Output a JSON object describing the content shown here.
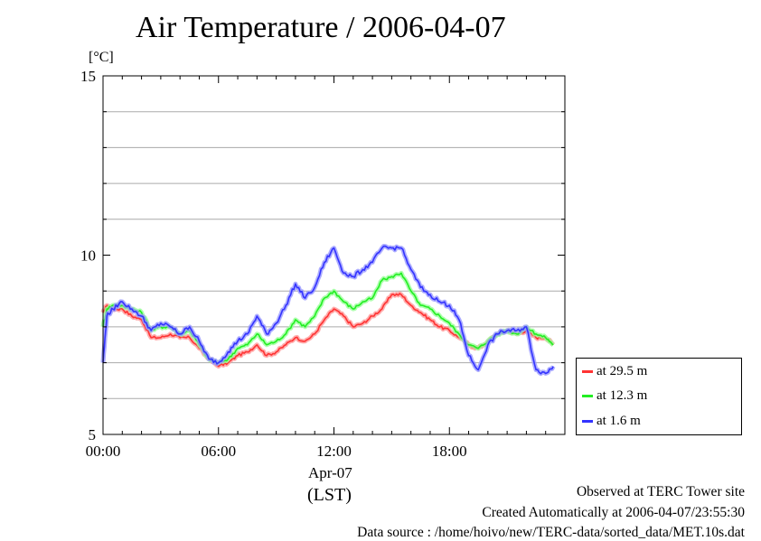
{
  "title": "Air Temperature / 2006-04-07",
  "y_unit": "[°C]",
  "date_label": "Apr-07",
  "timezone_label": "(LST)",
  "footer": {
    "site": "Observed at TERC Tower site",
    "created": "Created Automatically at 2006-04-07/23:55:30",
    "source": "Data source : /home/hoivo/new/TERC-data/sorted_data/MET.10s.dat"
  },
  "legend": [
    {
      "label": "at 29.5 m",
      "color": "#ff3333"
    },
    {
      "label": "at 12.3 m",
      "color": "#22ee22"
    },
    {
      "label": "at 1.6 m",
      "color": "#3333ff"
    }
  ],
  "chart_data": {
    "type": "line",
    "title": "Air Temperature / 2006-04-07",
    "ylabel": "[°C]",
    "xlabel": "(LST)",
    "xlim": [
      0,
      24
    ],
    "ylim": [
      5,
      15
    ],
    "x_ticks": [
      {
        "value": 0,
        "label": "00:00"
      },
      {
        "value": 6,
        "label": "06:00"
      },
      {
        "value": 12,
        "label": "12:00"
      },
      {
        "value": 18,
        "label": "18:00"
      }
    ],
    "y_ticks": [
      {
        "value": 5,
        "label": "5"
      },
      {
        "value": 10,
        "label": "10"
      },
      {
        "value": 15,
        "label": "15"
      }
    ],
    "grid_y": [
      6,
      7,
      8,
      9,
      11,
      12,
      13,
      14
    ],
    "legend_position": "right",
    "series": [
      {
        "name": "at 29.5 m",
        "color": "#ff3333",
        "x": [
          0,
          0.2,
          0.5,
          1,
          1.5,
          2,
          2.5,
          3,
          3.5,
          4,
          4.5,
          5,
          5.5,
          6,
          6.5,
          7,
          7.5,
          8,
          8.5,
          9,
          9.5,
          10,
          10.5,
          11,
          11.5,
          12,
          12.5,
          13,
          13.5,
          14,
          14.5,
          15,
          15.5,
          16,
          16.5,
          17,
          17.5,
          18,
          18.5,
          19,
          19.5,
          20,
          20.5,
          21,
          21.5,
          22,
          22.5,
          23,
          23.4
        ],
        "values": [
          8.4,
          8.6,
          8.5,
          8.5,
          8.3,
          8.2,
          7.7,
          7.7,
          7.8,
          7.7,
          7.7,
          7.4,
          7.1,
          6.9,
          7.0,
          7.2,
          7.3,
          7.5,
          7.2,
          7.3,
          7.5,
          7.7,
          7.6,
          7.8,
          8.2,
          8.5,
          8.3,
          8.0,
          8.1,
          8.3,
          8.5,
          8.9,
          8.9,
          8.6,
          8.4,
          8.2,
          8.0,
          7.9,
          7.7,
          7.5,
          7.4,
          7.6,
          7.8,
          7.9,
          7.8,
          7.9,
          7.7,
          7.7,
          7.5
        ]
      },
      {
        "name": "at 12.3 m",
        "color": "#22ee22",
        "x": [
          0,
          0.2,
          0.5,
          1,
          1.5,
          2,
          2.5,
          3,
          3.5,
          4,
          4.5,
          5,
          5.5,
          6,
          6.5,
          7,
          7.5,
          8,
          8.5,
          9,
          9.5,
          10,
          10.5,
          11,
          11.5,
          12,
          12.5,
          13,
          13.5,
          14,
          14.5,
          15,
          15.5,
          16,
          16.5,
          17,
          17.5,
          18,
          18.5,
          19,
          19.5,
          20,
          20.5,
          21,
          21.5,
          22,
          22.5,
          23,
          23.4
        ],
        "values": [
          8.0,
          8.5,
          8.6,
          8.6,
          8.5,
          8.4,
          7.9,
          8.0,
          8.0,
          7.8,
          7.9,
          7.5,
          7.1,
          7.0,
          7.1,
          7.4,
          7.5,
          7.8,
          7.5,
          7.6,
          7.8,
          8.2,
          8.0,
          8.3,
          8.8,
          9.0,
          8.7,
          8.5,
          8.7,
          8.8,
          9.3,
          9.4,
          9.5,
          9.0,
          8.6,
          8.5,
          8.3,
          8.1,
          7.8,
          7.5,
          7.4,
          7.6,
          7.8,
          7.9,
          7.8,
          8.0,
          7.8,
          7.7,
          7.5
        ]
      },
      {
        "name": "at 1.6 m",
        "color": "#3333ff",
        "x": [
          0,
          0.2,
          0.5,
          1,
          1.5,
          2,
          2.5,
          3,
          3.5,
          4,
          4.5,
          5,
          5.5,
          6,
          6.5,
          7,
          7.5,
          8,
          8.5,
          9,
          9.5,
          10,
          10.5,
          11,
          11.5,
          12,
          12.5,
          13,
          13.5,
          14,
          14.5,
          15,
          15.5,
          16,
          16.5,
          17,
          17.5,
          18,
          18.5,
          19,
          19.5,
          20,
          20.5,
          21,
          21.5,
          22,
          22.5,
          23,
          23.4
        ],
        "values": [
          7.0,
          8.3,
          8.5,
          8.7,
          8.5,
          8.3,
          7.9,
          8.1,
          8.0,
          7.8,
          8.0,
          7.6,
          7.1,
          7.0,
          7.3,
          7.6,
          7.8,
          8.3,
          7.8,
          8.1,
          8.6,
          9.2,
          8.8,
          9.1,
          9.8,
          10.2,
          9.5,
          9.4,
          9.6,
          9.8,
          10.2,
          10.2,
          10.2,
          9.6,
          9.1,
          8.9,
          8.7,
          8.6,
          8.2,
          7.2,
          6.8,
          7.5,
          7.8,
          7.9,
          7.9,
          8.0,
          6.8,
          6.7,
          6.9
        ]
      }
    ]
  }
}
